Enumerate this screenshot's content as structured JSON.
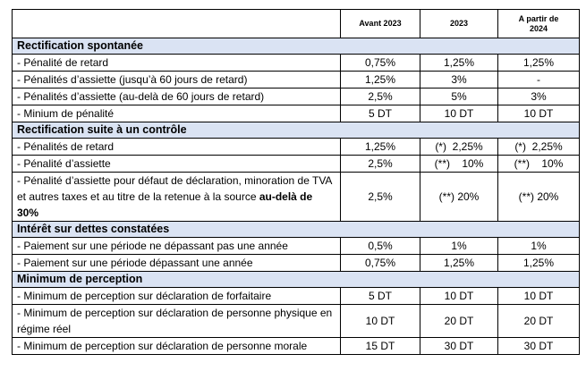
{
  "table": {
    "columns": [
      "",
      "Avant 2023",
      "2023",
      "A partir de 2024"
    ],
    "sections": [
      {
        "title": "Rectification spontanée",
        "rows": [
          [
            "- Pénalité de retard",
            "0,75%",
            "1,25%",
            "1,25%"
          ],
          [
            "- Pénalités d’assiette (jusqu’à 60 jours de retard)",
            "1,25%",
            "3%",
            "-"
          ],
          [
            "- Pénalités d’assiette (au-delà de 60 jours de retard)",
            "2,5%",
            "5%",
            "3%"
          ],
          [
            "- Minium de pénalité",
            "5 DT",
            "10 DT",
            "10 DT"
          ]
        ]
      },
      {
        "title": "Rectification suite à un contrôle",
        "rows": [
          [
            "- Pénalités de retard",
            "1,25%",
            "(*)  2,25%",
            "(*)  2,25%"
          ],
          [
            "- Pénalité d’assiette",
            "2,5%",
            "(**)    10%",
            "(**)    10%"
          ],
          [
            [
              "- Pénalité d’assiette pour défaut de déclaration, minoration de TVA et autres taxes et au titre de la retenue à la source ",
              "au-delà de 30%"
            ],
            "2,5%",
            "(**) 20%",
            "(**) 20%"
          ]
        ]
      },
      {
        "title": "Intérêt sur dettes constatées",
        "rows": [
          [
            "- Paiement sur une période ne dépassant pas une année",
            "0,5%",
            "1%",
            "1%"
          ],
          [
            "- Paiement sur une période dépassant une année",
            "0,75%",
            "1,25%",
            "1,25%"
          ]
        ]
      },
      {
        "title": "Minimum de perception",
        "rows": [
          [
            "- Minimum de perception sur déclaration de forfaitaire",
            "5 DT",
            "10 DT",
            "10 DT"
          ],
          [
            "- Minimum de perception sur déclaration de personne physique en régime réel",
            "10 DT",
            "20 DT",
            "20 DT"
          ],
          [
            "- Minimum de perception sur déclaration de personne morale",
            "15 DT",
            "30 DT",
            "30 DT"
          ]
        ]
      }
    ]
  }
}
